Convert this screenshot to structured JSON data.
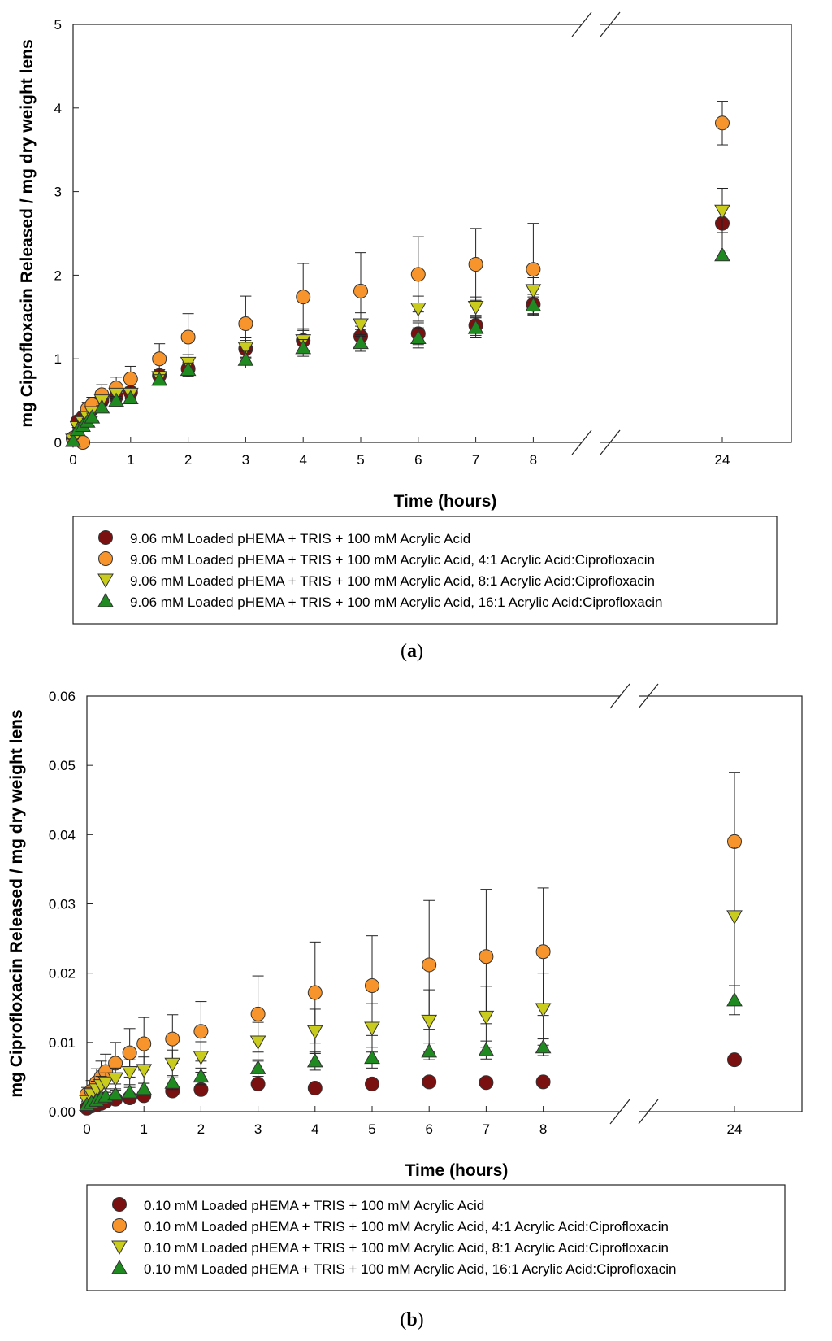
{
  "chart_data": [
    {
      "type": "scatter",
      "panel_label": "a",
      "xlabel": "Time (hours)",
      "ylabel": "mg Ciprofloxacin Released / mg dry weight lens",
      "ylim": [
        0,
        5
      ],
      "yticks": [
        "0",
        "1",
        "2",
        "3",
        "4",
        "5"
      ],
      "xticks": [
        "0",
        "1",
        "2",
        "3",
        "4",
        "5",
        "6",
        "7",
        "8",
        "24"
      ],
      "axis_break": "between 8 and 24",
      "legend": "below plot",
      "series": [
        {
          "name": "9.06 mM Loaded pHEMA + TRIS + 100 mM Acrylic Acid",
          "marker": "circle",
          "color": "#7a1010",
          "x": [
            0,
            0.08,
            0.17,
            0.25,
            0.33,
            0.5,
            0.75,
            1,
            1.5,
            2,
            3,
            4,
            5,
            6,
            7,
            8,
            24
          ],
          "y": [
            0.05,
            0.25,
            0.3,
            0.35,
            0.4,
            0.5,
            0.55,
            0.6,
            0.8,
            0.88,
            1.12,
            1.22,
            1.27,
            1.3,
            1.4,
            1.65,
            2.62
          ],
          "err": [
            0.03,
            0.05,
            0.05,
            0.05,
            0.05,
            0.06,
            0.06,
            0.06,
            0.07,
            0.08,
            0.1,
            0.12,
            0.12,
            0.13,
            0.12,
            0.12,
            0.42
          ]
        },
        {
          "name": "9.06 mM Loaded pHEMA + TRIS + 100 mM Acrylic Acid, 4:1 Acrylic Acid:Ciprofloxacin",
          "marker": "circle",
          "color": "#f7952c",
          "x": [
            0,
            0.17,
            0.25,
            0.33,
            0.5,
            0.75,
            1,
            1.5,
            2,
            3,
            4,
            5,
            6,
            7,
            8,
            24
          ],
          "y": [
            0.05,
            0.0,
            0.4,
            0.45,
            0.57,
            0.65,
            0.76,
            1.0,
            1.26,
            1.42,
            1.74,
            1.81,
            2.01,
            2.13,
            2.07,
            3.82
          ],
          "err": [
            0.03,
            0.02,
            0.08,
            0.09,
            0.12,
            0.13,
            0.15,
            0.18,
            0.28,
            0.33,
            0.4,
            0.46,
            0.45,
            0.43,
            0.55,
            0.26
          ]
        },
        {
          "name": "9.06 mM Loaded pHEMA + TRIS + 100 mM Acrylic Acid, 8:1 Acrylic Acid:Ciprofloxacin",
          "marker": "triangle-down",
          "color": "#c9cc1c",
          "x": [
            0,
            0.08,
            0.17,
            0.25,
            0.33,
            0.5,
            0.75,
            1,
            1.5,
            2,
            3,
            4,
            5,
            6,
            7,
            8,
            24
          ],
          "y": [
            0.03,
            0.18,
            0.24,
            0.3,
            0.36,
            0.5,
            0.58,
            0.58,
            0.78,
            0.95,
            1.13,
            1.22,
            1.41,
            1.6,
            1.62,
            1.82,
            2.77
          ],
          "err": [
            0.02,
            0.04,
            0.04,
            0.05,
            0.05,
            0.06,
            0.06,
            0.06,
            0.07,
            0.1,
            0.12,
            0.14,
            0.14,
            0.15,
            0.12,
            0.15,
            0.26
          ]
        },
        {
          "name": "9.06 mM Loaded pHEMA + TRIS + 100 mM Acrylic Acid, 16:1 Acrylic Acid:Ciprofloxacin",
          "marker": "triangle-up",
          "color": "#1f8a1f",
          "x": [
            0,
            0.08,
            0.17,
            0.25,
            0.33,
            0.5,
            0.75,
            1,
            1.5,
            2,
            3,
            4,
            5,
            6,
            7,
            8,
            24
          ],
          "y": [
            0.02,
            0.15,
            0.2,
            0.25,
            0.3,
            0.42,
            0.5,
            0.53,
            0.75,
            0.87,
            0.99,
            1.13,
            1.19,
            1.25,
            1.37,
            1.64,
            2.24
          ],
          "err": [
            0.02,
            0.03,
            0.04,
            0.04,
            0.05,
            0.05,
            0.05,
            0.05,
            0.06,
            0.08,
            0.1,
            0.1,
            0.1,
            0.12,
            0.12,
            0.1,
            0.06
          ]
        }
      ]
    },
    {
      "type": "scatter",
      "panel_label": "b",
      "xlabel": "Time (hours)",
      "ylabel": "mg Ciprofloxacin Released / mg dry weight lens",
      "ylim": [
        0,
        0.06
      ],
      "yticks": [
        "0.00",
        "0.01",
        "0.02",
        "0.03",
        "0.04",
        "0.05",
        "0.06"
      ],
      "xticks": [
        "0",
        "1",
        "2",
        "3",
        "4",
        "5",
        "6",
        "7",
        "8",
        "24"
      ],
      "axis_break": "between 8 and 24",
      "legend": "below plot",
      "series": [
        {
          "name": "0.10 mM Loaded pHEMA + TRIS + 100 mM Acrylic Acid",
          "marker": "circle",
          "color": "#7a1010",
          "x": [
            0,
            0.08,
            0.17,
            0.25,
            0.33,
            0.5,
            0.75,
            1,
            1.5,
            2,
            3,
            4,
            5,
            6,
            7,
            8,
            24
          ],
          "y": [
            0.0005,
            0.0008,
            0.001,
            0.0012,
            0.0015,
            0.0018,
            0.002,
            0.0023,
            0.003,
            0.0032,
            0.004,
            0.0034,
            0.004,
            0.0043,
            0.0042,
            0.0043,
            0.0075
          ],
          "err": [
            0.0002,
            0.0003,
            0.0003,
            0.0003,
            0.0003,
            0.0003,
            0.0003,
            0.0003,
            0.0003,
            0.0003,
            0.0003,
            0.0003,
            0.0003,
            0.0003,
            0.0003,
            0.0003,
            0.0004
          ]
        },
        {
          "name": "0.10 mM Loaded pHEMA + TRIS + 100 mM Acrylic Acid, 4:1 Acrylic Acid:Ciprofloxacin",
          "marker": "circle",
          "color": "#f7952c",
          "x": [
            0,
            0.08,
            0.17,
            0.25,
            0.33,
            0.5,
            0.75,
            1,
            1.5,
            2,
            3,
            4,
            5,
            6,
            7,
            8,
            24
          ],
          "y": [
            0.0025,
            0.003,
            0.0042,
            0.005,
            0.0058,
            0.007,
            0.0085,
            0.0098,
            0.0105,
            0.0116,
            0.0141,
            0.0172,
            0.0182,
            0.0212,
            0.0224,
            0.0231,
            0.039
          ],
          "err": [
            0.001,
            0.0015,
            0.002,
            0.0023,
            0.0025,
            0.003,
            0.0035,
            0.0038,
            0.0035,
            0.0043,
            0.0055,
            0.0073,
            0.0072,
            0.0093,
            0.0097,
            0.0092,
            0.01
          ]
        },
        {
          "name": "0.10 mM Loaded pHEMA + TRIS + 100 mM Acrylic Acid, 8:1 Acrylic Acid:Ciprofloxacin",
          "marker": "triangle-down",
          "color": "#c9cc1c",
          "x": [
            0,
            0.08,
            0.17,
            0.25,
            0.33,
            0.5,
            0.75,
            1,
            1.5,
            2,
            3,
            4,
            5,
            6,
            7,
            8,
            24
          ],
          "y": [
            0.0015,
            0.0025,
            0.0032,
            0.0038,
            0.0042,
            0.0048,
            0.0057,
            0.006,
            0.0069,
            0.0079,
            0.0101,
            0.0116,
            0.0121,
            0.0131,
            0.0137,
            0.0148,
            0.0282
          ],
          "err": [
            0.0008,
            0.001,
            0.0012,
            0.0013,
            0.0014,
            0.0015,
            0.0018,
            0.0019,
            0.002,
            0.0022,
            0.0028,
            0.0032,
            0.0035,
            0.0045,
            0.0044,
            0.0052,
            0.01
          ]
        },
        {
          "name": "0.10 mM Loaded pHEMA + TRIS + 100 mM Acrylic Acid, 16:1 Acrylic Acid:Ciprofloxacin",
          "marker": "triangle-up",
          "color": "#1f8a1f",
          "x": [
            0,
            0.08,
            0.17,
            0.25,
            0.33,
            0.5,
            0.75,
            1,
            1.5,
            2,
            3,
            4,
            5,
            6,
            7,
            8,
            24
          ],
          "y": [
            0.001,
            0.0013,
            0.0016,
            0.002,
            0.0022,
            0.0025,
            0.0028,
            0.0033,
            0.0042,
            0.0051,
            0.0063,
            0.0073,
            0.0078,
            0.0087,
            0.0089,
            0.0093,
            0.0161
          ],
          "err": [
            0.0003,
            0.0004,
            0.0005,
            0.0005,
            0.0006,
            0.0006,
            0.0007,
            0.0008,
            0.001,
            0.0012,
            0.0012,
            0.0013,
            0.0015,
            0.0012,
            0.0013,
            0.0012,
            0.0021
          ]
        }
      ]
    }
  ]
}
